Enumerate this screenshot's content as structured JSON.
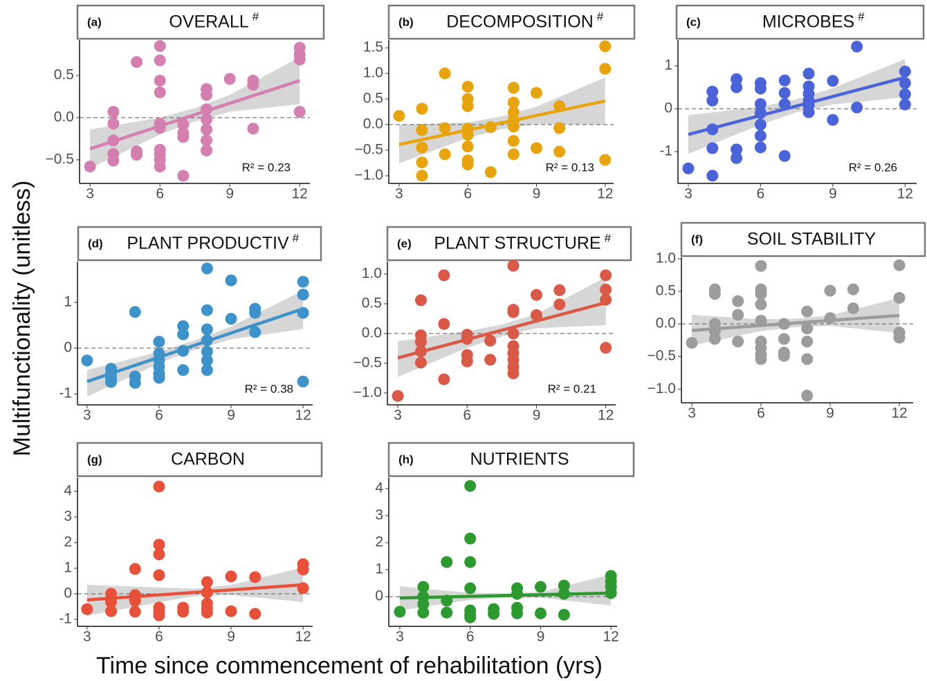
{
  "y_axis_label": "Multifunctionality (unitless)",
  "x_axis_label": "Time since commencement of rehabilitation (yrs)",
  "chart_data": [
    {
      "type": "scatter",
      "panel_label": "(a)",
      "title": "OVERALL",
      "title_mark": "#",
      "annotation": "R² = 0.23",
      "color": "#d47fb0",
      "x": [
        3,
        4,
        4,
        4,
        4,
        4,
        5,
        5,
        5,
        6,
        6,
        6,
        6,
        6,
        6,
        6,
        6,
        6,
        6,
        7,
        7,
        7,
        7,
        8,
        8,
        8,
        8,
        8,
        8,
        8,
        9,
        10,
        10,
        10,
        12,
        12,
        12,
        12
      ],
      "y": [
        -0.58,
        0.07,
        -0.07,
        -0.27,
        -0.43,
        -0.51,
        0.66,
        -0.4,
        -0.44,
        0.85,
        0.68,
        0.44,
        0.3,
        -0.07,
        -0.12,
        -0.38,
        -0.43,
        -0.5,
        -0.58,
        -0.69,
        -0.08,
        -0.18,
        -0.23,
        0.34,
        0.27,
        0.1,
        -0.02,
        -0.14,
        -0.27,
        -0.39,
        0.46,
        0.44,
        0.39,
        -0.13,
        0.83,
        0.75,
        0.69,
        0.07
      ],
      "fit": {
        "x": [
          3,
          12
        ],
        "y": [
          -0.37,
          0.44
        ]
      },
      "ci": {
        "x": [
          3,
          6,
          7.5,
          9,
          12
        ],
        "upper": [
          -0.14,
          0.0,
          0.115,
          0.27,
          0.72
        ],
        "lower": [
          -0.6,
          -0.2,
          -0.045,
          0.07,
          0.16
        ]
      },
      "reference_line": 0,
      "xlim": [
        2.55,
        12.44
      ],
      "ylim": [
        -0.78,
        0.92
      ],
      "xticks": [
        3,
        6,
        9,
        12
      ],
      "yticks": [
        {
          "value": -0.5,
          "label": "−0.5"
        },
        {
          "value": 0,
          "label": "0.0"
        },
        0.5
      ]
    },
    {
      "type": "scatter",
      "panel_label": "(b)",
      "title": "DECOMPOSITION",
      "title_mark": "#",
      "annotation": "R² = 0.13",
      "color": "#e8a40c",
      "x": [
        3,
        4,
        4,
        4,
        4,
        4,
        5,
        5,
        5,
        6,
        6,
        6,
        6,
        6,
        6,
        6,
        6,
        7,
        7,
        8,
        8,
        8,
        8,
        8,
        8,
        8,
        9,
        9,
        10,
        10,
        10,
        12,
        12,
        12
      ],
      "y": [
        0.17,
        0.31,
        -0.11,
        -0.45,
        -0.74,
        -1.0,
        1.0,
        -0.07,
        -0.58,
        0.74,
        0.5,
        0.36,
        -0.08,
        -0.2,
        -0.43,
        -0.7,
        -0.78,
        -0.05,
        -0.93,
        0.72,
        0.43,
        0.24,
        0.08,
        -0.04,
        -0.32,
        -0.58,
        0.62,
        -0.46,
        0.36,
        -0.07,
        -0.53,
        1.53,
        1.09,
        -0.69
      ],
      "fit": {
        "x": [
          3,
          12
        ],
        "y": [
          -0.39,
          0.46
        ]
      },
      "ci": {
        "x": [
          3,
          6,
          7.5,
          9,
          12
        ],
        "upper": [
          0.0,
          0.04,
          0.16,
          0.35,
          0.92
        ],
        "lower": [
          -0.76,
          -0.26,
          -0.09,
          0.01,
          0.0
        ]
      },
      "reference_line": 0,
      "xlim": [
        2.55,
        12.37
      ],
      "ylim": [
        -1.15,
        1.65
      ],
      "xticks": [
        3,
        6,
        9,
        12
      ],
      "yticks": [
        {
          "value": -1,
          "label": "−1.0"
        },
        {
          "value": -0.5,
          "label": "−0.5"
        },
        {
          "value": 0,
          "label": "0.0"
        },
        0.5,
        {
          "value": 1,
          "label": "1.0"
        },
        1.5
      ]
    },
    {
      "type": "scatter",
      "panel_label": "(c)",
      "title": "MICROBES",
      "title_mark": "#",
      "annotation": "R² = 0.26",
      "color": "#4a63d8",
      "x": [
        3,
        4,
        4,
        4,
        4,
        4,
        5,
        5,
        5,
        5,
        6,
        6,
        6,
        6,
        6,
        6,
        6,
        7,
        7,
        7,
        7,
        8,
        8,
        8,
        8,
        8,
        8,
        9,
        9,
        10,
        10,
        12,
        12,
        12,
        12
      ],
      "y": [
        -1.39,
        0.4,
        0.19,
        -0.48,
        -0.92,
        -1.56,
        0.69,
        0.5,
        -0.95,
        -1.15,
        0.6,
        0.47,
        0.11,
        -0.1,
        -0.37,
        -0.63,
        -0.9,
        0.66,
        0.37,
        0.11,
        -1.1,
        0.82,
        0.52,
        0.35,
        0.19,
        0.08,
        -0.08,
        0.65,
        -0.26,
        1.45,
        0.03,
        0.87,
        0.6,
        0.34,
        0.1
      ],
      "fit": {
        "x": [
          3,
          12
        ],
        "y": [
          -0.6,
          0.73
        ]
      },
      "ci": {
        "x": [
          3,
          6,
          7.5,
          9,
          12
        ],
        "upper": [
          -0.15,
          0.05,
          0.22,
          0.48,
          1.16
        ],
        "lower": [
          -1.05,
          -0.37,
          -0.08,
          0.1,
          0.27
        ]
      },
      "reference_line": 0,
      "xlim": [
        2.57,
        12.48
      ],
      "ylim": [
        -1.74,
        1.6
      ],
      "xticks": [
        3,
        6,
        9,
        12
      ],
      "yticks": [
        -1,
        0,
        1
      ]
    },
    {
      "type": "scatter",
      "panel_label": "(d)",
      "title": "PLANT PRODUCTIV",
      "title_mark": "#",
      "annotation": "R² = 0.38",
      "color": "#3d93c9",
      "x": [
        3,
        4,
        4,
        4,
        4,
        5,
        5,
        5,
        6,
        6,
        6,
        6,
        6,
        6,
        7,
        7,
        7,
        7,
        8,
        8,
        8,
        8,
        8,
        8,
        8,
        9,
        9,
        10,
        10,
        10,
        12,
        12,
        12,
        12
      ],
      "y": [
        -0.27,
        -0.45,
        -0.56,
        -0.67,
        -0.74,
        0.79,
        -0.62,
        -0.76,
        0.14,
        -0.12,
        -0.26,
        -0.41,
        -0.56,
        -0.65,
        0.48,
        0.3,
        -0.06,
        -0.48,
        1.74,
        0.83,
        0.41,
        0.17,
        -0.08,
        -0.27,
        -0.48,
        1.48,
        0.64,
        0.86,
        0.77,
        0.35,
        1.45,
        1.17,
        0.77,
        -0.73
      ],
      "fit": {
        "x": [
          3,
          12
        ],
        "y": [
          -0.73,
          0.86
        ]
      },
      "ci": {
        "x": [
          3,
          6,
          7.5,
          9,
          12
        ],
        "upper": [
          -0.48,
          -0.08,
          0.17,
          0.47,
          1.26
        ],
        "lower": [
          -1.06,
          -0.33,
          -0.03,
          0.19,
          0.42
        ]
      },
      "reference_line": 0,
      "xlim": [
        2.6,
        12.4
      ],
      "ylim": [
        -1.24,
        1.89
      ],
      "xticks": [
        3,
        6,
        9,
        12
      ],
      "yticks": [
        -1,
        0,
        1
      ]
    },
    {
      "type": "scatter",
      "panel_label": "(e)",
      "title": "PLANT STRUCTURE",
      "title_mark": "#",
      "annotation": "R² = 0.21",
      "color": "#d95846",
      "x": [
        3,
        4,
        4,
        4,
        4,
        4,
        5,
        5,
        5,
        6,
        6,
        6,
        6,
        7,
        7,
        8,
        8,
        8,
        8,
        8,
        8,
        8,
        8,
        8,
        9,
        9,
        10,
        10,
        12,
        12,
        12,
        12
      ],
      "y": [
        -1.05,
        0.56,
        -0.03,
        -0.14,
        -0.3,
        -0.49,
        0.98,
        0.16,
        -0.77,
        -0.02,
        -0.09,
        -0.36,
        -0.47,
        -0.12,
        -0.44,
        1.14,
        0.4,
        0.36,
        0.0,
        -0.21,
        -0.33,
        -0.44,
        -0.56,
        -0.67,
        0.65,
        0.31,
        0.73,
        0.49,
        0.98,
        0.74,
        0.57,
        -0.24
      ],
      "fit": {
        "x": [
          3,
          12
        ],
        "y": [
          -0.41,
          0.52
        ]
      },
      "ci": {
        "x": [
          3,
          6,
          7.5,
          9,
          12
        ],
        "upper": [
          -0.13,
          0.04,
          0.15,
          0.33,
          0.95
        ],
        "lower": [
          -0.73,
          -0.24,
          -0.05,
          0.09,
          0.14
        ]
      },
      "reference_line": 0,
      "xlim": [
        2.55,
        12.43
      ],
      "ylim": [
        -1.2,
        1.21
      ],
      "xticks": [
        3,
        6,
        9,
        12
      ],
      "yticks": [
        {
          "value": -1,
          "label": "−1.0"
        },
        {
          "value": -0.5,
          "label": "−0.5"
        },
        {
          "value": 0,
          "label": "0.0"
        },
        0.5,
        {
          "value": 1,
          "label": "1.0"
        }
      ]
    },
    {
      "type": "scatter",
      "panel_label": "(f)",
      "title": "SOIL STABILITY",
      "color": "#9c9c9c",
      "x": [
        3,
        4,
        4,
        4,
        4,
        4,
        5,
        5,
        5,
        6,
        6,
        6,
        6,
        6,
        6,
        6,
        6,
        6,
        7,
        7,
        7,
        7,
        8,
        8,
        8,
        8,
        8,
        9,
        9,
        10,
        10,
        12,
        12,
        12,
        12
      ],
      "y": [
        -0.29,
        0.53,
        0.46,
        0.0,
        -0.11,
        -0.23,
        0.35,
        0.14,
        -0.27,
        0.89,
        0.53,
        0.46,
        0.3,
        0.05,
        -0.27,
        -0.37,
        -0.47,
        -0.54,
        0.0,
        -0.23,
        -0.44,
        -0.49,
        0.19,
        -0.07,
        -0.27,
        -0.54,
        -1.1,
        0.51,
        0.09,
        0.53,
        0.24,
        0.9,
        0.4,
        -0.13,
        -0.21
      ],
      "fit": {
        "x": [
          3,
          12
        ],
        "y": [
          -0.1,
          0.13
        ]
      },
      "ci": {
        "x": [
          3,
          6,
          7.5,
          9,
          12
        ],
        "upper": [
          0.14,
          0.07,
          0.08,
          0.13,
          0.4
        ],
        "lower": [
          -0.33,
          -0.11,
          -0.05,
          -0.03,
          -0.14
        ]
      },
      "reference_line": 0,
      "xlim": [
        2.55,
        12.6
      ],
      "ylim": [
        -1.21,
        1.02
      ],
      "xticks": [
        3,
        6,
        9,
        12
      ],
      "yticks": [
        {
          "value": -1,
          "label": "−1.0"
        },
        {
          "value": -0.5,
          "label": "−0.5"
        },
        {
          "value": 0,
          "label": "0.0"
        },
        0.5,
        {
          "value": 1,
          "label": "1.0"
        }
      ]
    },
    {
      "type": "scatter",
      "panel_label": "(g)",
      "title": "CARBON",
      "color": "#e8503a",
      "x": [
        3,
        4,
        4,
        4,
        5,
        5,
        5,
        5,
        6,
        6,
        6,
        6,
        6,
        6,
        6,
        7,
        7,
        8,
        8,
        8,
        8,
        8,
        9,
        9,
        10,
        10,
        12,
        12,
        12
      ],
      "y": [
        -0.6,
        0.0,
        -0.32,
        -0.68,
        0.97,
        -0.05,
        -0.27,
        -0.7,
        4.19,
        1.92,
        1.54,
        0.73,
        -0.54,
        -0.7,
        -0.84,
        -0.54,
        -0.7,
        0.46,
        0.05,
        -0.38,
        -0.57,
        -0.73,
        0.68,
        -0.68,
        0.65,
        -0.78,
        1.16,
        0.95,
        0.22
      ],
      "fit": {
        "x": [
          3,
          12
        ],
        "y": [
          -0.24,
          0.35
        ]
      },
      "ci": {
        "x": [
          3,
          6,
          7.5,
          9,
          12
        ],
        "upper": [
          0.35,
          0.25,
          0.2,
          0.35,
          1.03
        ],
        "lower": [
          -0.86,
          -0.33,
          -0.09,
          -0.05,
          -0.32
        ]
      },
      "reference_line": 0,
      "xlim": [
        2.6,
        12.4
      ],
      "ylim": [
        -1.27,
        4.54
      ],
      "xticks": [
        3,
        6,
        9,
        12
      ],
      "yticks": [
        -1,
        0,
        1,
        2,
        3,
        4
      ]
    },
    {
      "type": "scatter",
      "panel_label": "(h)",
      "title": "NUTRIENTS",
      "color": "#2c9a2e",
      "x": [
        3,
        4,
        4,
        4,
        4,
        5,
        5,
        5,
        6,
        6,
        6,
        6,
        6,
        6,
        6,
        7,
        7,
        8,
        8,
        8,
        8,
        9,
        9,
        10,
        10,
        10,
        12,
        12,
        12,
        12
      ],
      "y": [
        -0.56,
        0.36,
        0.0,
        -0.28,
        -0.59,
        1.28,
        -0.15,
        -0.59,
        4.1,
        2.15,
        1.28,
        0.31,
        -0.51,
        -0.67,
        -0.77,
        -0.46,
        -0.64,
        0.31,
        0.1,
        -0.41,
        -0.62,
        0.36,
        -0.62,
        0.41,
        0.1,
        -0.67,
        0.77,
        0.56,
        0.36,
        0.13
      ],
      "fit": {
        "x": [
          3,
          12
        ],
        "y": [
          -0.05,
          0.13
        ]
      },
      "ci": {
        "x": [
          3,
          6,
          7.5,
          9,
          12
        ],
        "upper": [
          0.38,
          0.14,
          0.12,
          0.17,
          0.82
        ],
        "lower": [
          -0.51,
          -0.12,
          -0.04,
          -0.04,
          -0.33
        ]
      },
      "reference_line": 0,
      "xlim": [
        2.53,
        12.26
      ],
      "ylim": [
        -1.1,
        4.41
      ],
      "xticks": [
        3,
        6,
        9,
        12
      ],
      "yticks": [
        0,
        1,
        2,
        3,
        4
      ]
    }
  ]
}
